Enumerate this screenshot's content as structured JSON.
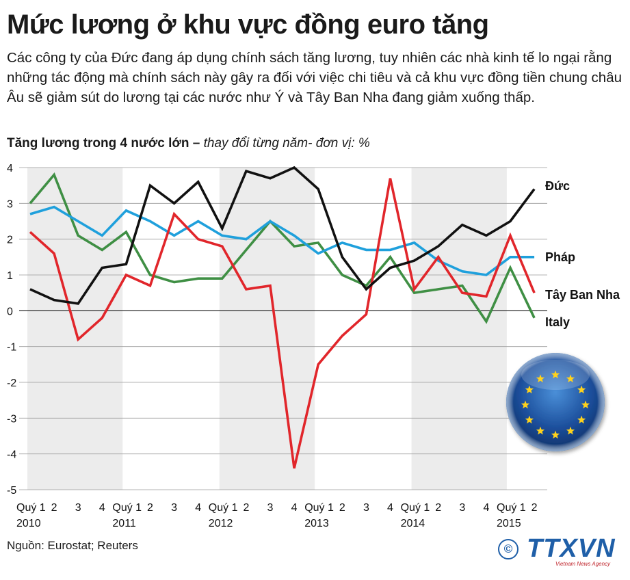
{
  "title": "Mức lương ở khu vực đồng euro tăng",
  "subtitle": "Các công ty của Đức đang áp dụng chính sách tăng lương, tuy nhiên các nhà kinh tế lo ngại rằng những tác động mà chính sách này gây ra đối với việc chi tiêu và cả khu vực đồng tiền chung châu Âu sẽ giảm sút do lương tại các nước như Ý và Tây Ban Nha đang giảm xuống thấp.",
  "chart_heading": {
    "bold": "Tăng lương trong 4 nước lớn –",
    "italic": "thay đổi từng năm- đơn vị: %"
  },
  "source": "Nguồn: Eurostat; Reuters",
  "logo": {
    "copyright": "©",
    "brand": "TTXVN",
    "tagline": "Vietnam News Agency"
  },
  "chart_data": {
    "type": "line",
    "x": [
      "Quý 1",
      "2",
      "3",
      "4",
      "Quý 1",
      "2",
      "3",
      "4",
      "Quý 1",
      "2",
      "3",
      "4",
      "Quý 1",
      "2",
      "3",
      "4",
      "Quý 1",
      "2",
      "3",
      "4",
      "Quý 1",
      "2"
    ],
    "year_labels": [
      "2010",
      "2011",
      "2012",
      "2013",
      "2014",
      "2015"
    ],
    "ylim": [
      -5,
      4
    ],
    "yticks": [
      4,
      3,
      2,
      1,
      0,
      -1,
      -2,
      -3,
      -4,
      -5
    ],
    "grid": true,
    "series": [
      {
        "name": "Đức",
        "color": "#111111",
        "values": [
          0.6,
          0.3,
          0.2,
          1.2,
          1.3,
          3.5,
          3.0,
          3.6,
          2.3,
          3.9,
          3.7,
          4.0,
          3.4,
          1.5,
          0.6,
          1.2,
          1.4,
          1.8,
          2.4,
          2.1,
          2.5,
          3.4
        ]
      },
      {
        "name": "Pháp",
        "color": "#1fa0dc",
        "values": [
          2.7,
          2.9,
          2.5,
          2.1,
          2.8,
          2.5,
          2.1,
          2.5,
          2.1,
          2.0,
          2.5,
          2.1,
          1.6,
          1.9,
          1.7,
          1.7,
          1.9,
          1.4,
          1.1,
          1.0,
          1.5,
          1.5
        ]
      },
      {
        "name": "Tây Ban Nha",
        "color": "#e1262b",
        "values": [
          2.2,
          1.6,
          -0.8,
          -0.2,
          1.0,
          0.7,
          2.7,
          2.0,
          1.8,
          0.6,
          0.7,
          -4.4,
          -1.5,
          -0.7,
          -0.1,
          3.7,
          0.6,
          1.5,
          0.5,
          0.4,
          2.1,
          0.5
        ]
      },
      {
        "name": "Italy",
        "color": "#3f8f44",
        "values": [
          3.0,
          3.8,
          2.1,
          1.7,
          2.2,
          1.0,
          0.8,
          0.9,
          0.9,
          1.7,
          2.5,
          1.8,
          1.9,
          1.0,
          0.7,
          1.5,
          0.5,
          0.6,
          0.7,
          -0.3,
          1.2,
          -0.2
        ]
      }
    ]
  }
}
